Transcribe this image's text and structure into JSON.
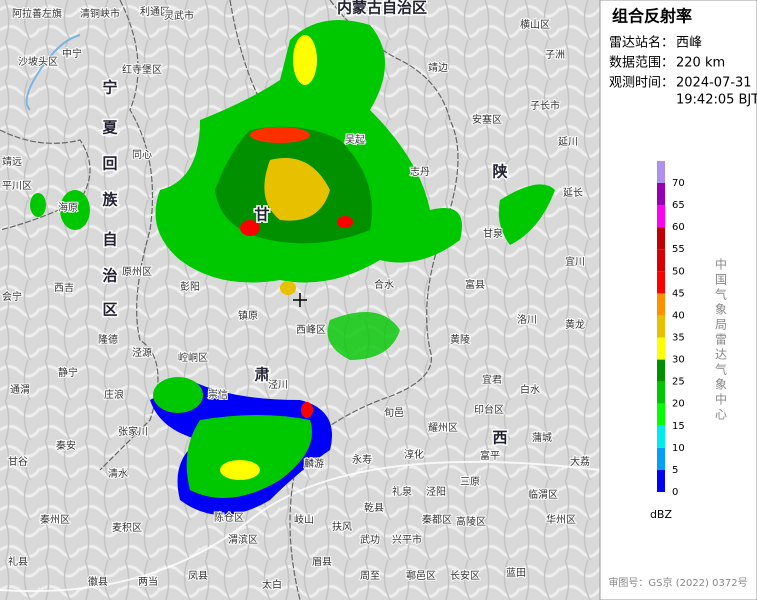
{
  "panel": {
    "title": "组合反射率",
    "station_label": "雷达站名：",
    "station": "西峰",
    "range_label": "数据范围：",
    "range": "220 km",
    "time_label": "观测时间：",
    "date": "2024-07-31",
    "time": "19:42:05 BJT",
    "credit": "中国气象局雷达气象中心",
    "unit": "dBZ",
    "legend_ticks": [
      0,
      5,
      10,
      15,
      20,
      25,
      30,
      35,
      40,
      45,
      50,
      55,
      60,
      65,
      70
    ],
    "legend_colors": [
      "#0000f6",
      "#01a0f6",
      "#00ecec",
      "#01ff00",
      "#00c800",
      "#019000",
      "#ffff00",
      "#e7c000",
      "#ff9000",
      "#ff0000",
      "#d60000",
      "#c00000",
      "#ff00f0",
      "#9600b4",
      "#ad90f0"
    ]
  },
  "map": {
    "provinces": [
      "宁",
      "夏",
      "回",
      "族",
      "自",
      "治",
      "区",
      "甘",
      "肃",
      "陕",
      "西",
      "内蒙古自治区"
    ],
    "places": [
      "阿拉善左旗",
      "清铜峡市",
      "利通区",
      "灵武市",
      "横山区",
      "子洲",
      "中宁",
      "沙坡头区",
      "红寺堡区",
      "靖边",
      "子长市",
      "安塞区",
      "延川",
      "同心",
      "吴起",
      "志丹",
      "靖远",
      "平川区",
      "海原",
      "延长",
      "甘泉",
      "宜川",
      "原州区",
      "西吉",
      "富县",
      "会宁",
      "彭阳",
      "合水",
      "镇原",
      "洛川",
      "黄龙",
      "西峰区",
      "隆德",
      "泾源",
      "黄陵",
      "崆峒区",
      "静宁",
      "宜君",
      "白水",
      "通渭",
      "庄浪",
      "崇信",
      "泾川",
      "印台区",
      "旬邑",
      "张家川",
      "耀州区",
      "秦安",
      "清水",
      "永寿",
      "淳化",
      "富平",
      "蒲城",
      "大荔",
      "甘谷",
      "麟游",
      "乾县",
      "礼泉",
      "泾阳",
      "三原",
      "临渭区",
      "秦州区",
      "麦积区",
      "陈仓区",
      "岐山",
      "扶风",
      "武功",
      "兴平市",
      "秦都区",
      "高陵区",
      "华州区",
      "礼县",
      "渭滨区",
      "眉县",
      "周至",
      "鄠邑区",
      "长安区",
      "蓝田",
      "徽县",
      "两当",
      "凤县",
      "太白"
    ]
  },
  "footer": "审图号：GS京 (2022) 0372号"
}
